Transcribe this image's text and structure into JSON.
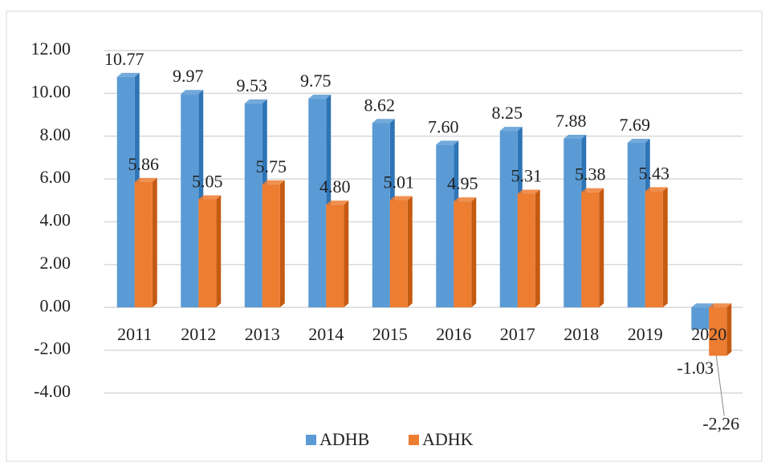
{
  "chart_data": {
    "type": "bar",
    "categories": [
      "2011",
      "2012",
      "2013",
      "2014",
      "2015",
      "2016",
      "2017",
      "2018",
      "2019",
      "2020"
    ],
    "series": [
      {
        "name": "ADHB",
        "color": "#5b9bd5",
        "side_color": "#2e75b6",
        "values": [
          10.77,
          9.97,
          9.53,
          9.75,
          8.62,
          7.6,
          8.25,
          7.88,
          7.69,
          -1.03
        ],
        "value_labels": [
          "10.77",
          "9.97",
          "9.53",
          "9.75",
          "8.62",
          "7.60",
          "8.25",
          "7.88",
          "7.69",
          "-1.03"
        ]
      },
      {
        "name": "ADHK",
        "color": "#ed7d31",
        "side_color": "#c55a11",
        "values": [
          5.86,
          5.05,
          5.75,
          4.8,
          5.01,
          4.95,
          5.31,
          5.38,
          5.43,
          -2.26
        ],
        "value_labels": [
          "5.86",
          "5.05",
          "5.75",
          "4.80",
          "5.01",
          "4.95",
          "5.31",
          "5.38",
          "5.43",
          "-2,26"
        ]
      }
    ],
    "ylim": [
      -4,
      12
    ],
    "yticks": [
      {
        "value": -4,
        "label": "-4.00"
      },
      {
        "value": -2,
        "label": "-2.00"
      },
      {
        "value": 0,
        "label": "0.00"
      },
      {
        "value": 2,
        "label": "2.00"
      },
      {
        "value": 4,
        "label": "4.00"
      },
      {
        "value": 6,
        "label": "6.00"
      },
      {
        "value": 8,
        "label": "8.00"
      },
      {
        "value": 10,
        "label": "10.00"
      },
      {
        "value": 12,
        "label": "12.00"
      }
    ],
    "grid": true,
    "legend": "bottom"
  }
}
